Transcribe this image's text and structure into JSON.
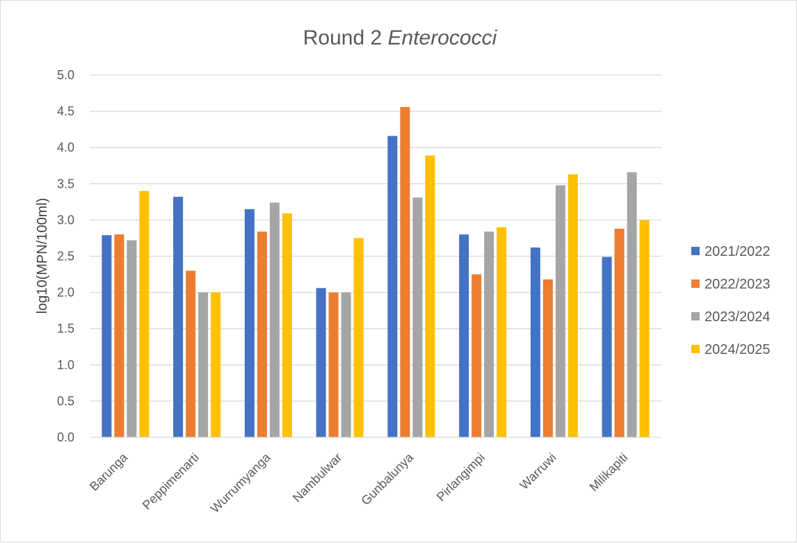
{
  "chart_data": {
    "type": "bar",
    "title": "Round 2",
    "title_italic": "Enterococci",
    "xlabel": "",
    "ylabel": "log10(MPN/100ml)",
    "ylim": [
      0,
      5
    ],
    "yticks": [
      "0.0",
      "0.5",
      "1.0",
      "1.5",
      "2.0",
      "2.5",
      "3.0",
      "3.5",
      "4.0",
      "4.5",
      "5.0"
    ],
    "grid": true,
    "legend_position": "right",
    "categories": [
      "Barunga",
      "Peppimenarti",
      "Wurrumyanga",
      "Nambulwar",
      "Gunbalunya",
      "Pirlangimpi",
      "Warruwi",
      "Milikapiti"
    ],
    "series": [
      {
        "name": "2021/2022",
        "color": "#4472C4",
        "values": [
          2.79,
          3.32,
          3.15,
          2.06,
          4.16,
          2.8,
          2.62,
          2.49
        ]
      },
      {
        "name": "2022/2023",
        "color": "#ED7D31",
        "values": [
          2.8,
          2.3,
          2.84,
          2.0,
          4.56,
          2.25,
          2.18,
          2.88
        ]
      },
      {
        "name": "2023/2024",
        "color": "#A5A5A5",
        "values": [
          2.72,
          2.0,
          3.24,
          2.0,
          3.31,
          2.84,
          3.48,
          3.66
        ]
      },
      {
        "name": "2024/2025",
        "color": "#FFC000",
        "values": [
          3.4,
          2.0,
          3.09,
          2.75,
          3.89,
          2.9,
          3.63,
          3.0
        ]
      }
    ]
  }
}
